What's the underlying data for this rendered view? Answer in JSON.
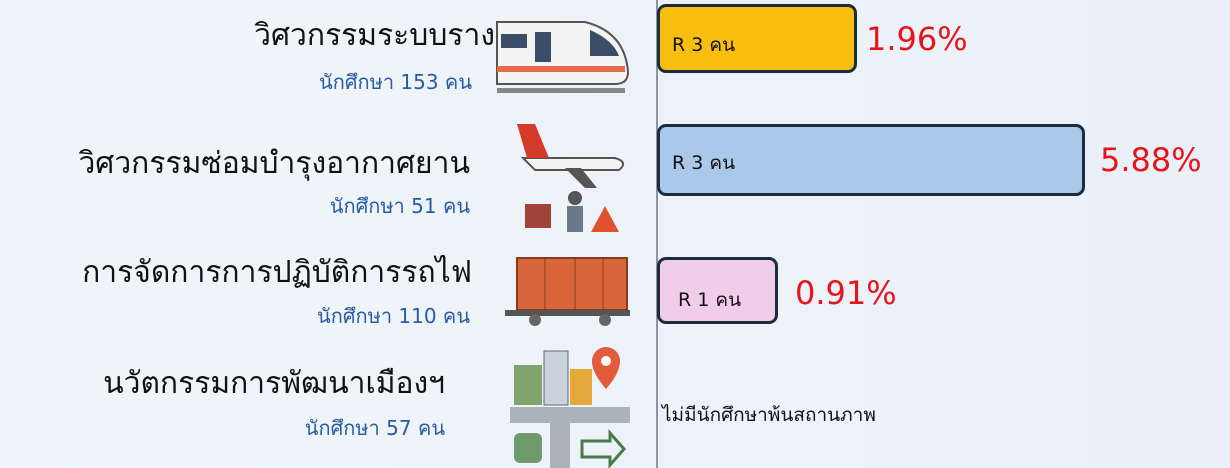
{
  "rows": [
    {
      "name": "วิศวกรรมระบบราง",
      "students": "นักศึกษา 153 คน",
      "bar_label": "R 3 คน",
      "percent": "1.96%"
    },
    {
      "name": "วิศวกรรมซ่อมบำรุงอากาศยาน",
      "students": "นักศึกษา 51 คน",
      "bar_label": "R 3 คน",
      "percent": "5.88%"
    },
    {
      "name": "การจัดการการปฏิบัติการรถไฟ",
      "students": "นักศึกษา 110 คน",
      "bar_label": "R 1 คน",
      "percent": "0.91%"
    },
    {
      "name": "นวัตกรรมการพัฒนาเมืองฯ",
      "students": "นักศึกษา 57 คน",
      "note": "ไม่มีนักศึกษาพ้นสถานภาพ"
    }
  ]
}
